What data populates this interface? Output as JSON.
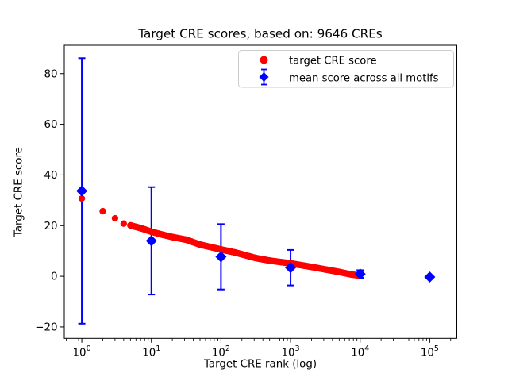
{
  "chart_data": {
    "type": "scatter",
    "title": "Target CRE scores, based on: 9646 CREs",
    "xlabel": "Target CRE rank (log)",
    "ylabel": "Target CRE score",
    "x_scale": "log",
    "grid": false,
    "legend_position": "upper right",
    "n_cres": 9646,
    "xlim": [
      0.56,
      245000
    ],
    "ylim": [
      -24.5,
      91.2
    ],
    "xticks": [
      {
        "value": 1,
        "mantissa": "10",
        "exponent": "0"
      },
      {
        "value": 10,
        "mantissa": "10",
        "exponent": "1"
      },
      {
        "value": 100,
        "mantissa": "10",
        "exponent": "2"
      },
      {
        "value": 1000,
        "mantissa": "10",
        "exponent": "3"
      },
      {
        "value": 10000,
        "mantissa": "10",
        "exponent": "4"
      },
      {
        "value": 100000,
        "mantissa": "10",
        "exponent": "5"
      }
    ],
    "yticks": [
      {
        "value": -20,
        "label": "−20"
      },
      {
        "value": 0,
        "label": "0"
      },
      {
        "value": 20,
        "label": "20"
      },
      {
        "value": 40,
        "label": "40"
      },
      {
        "value": 60,
        "label": "60"
      },
      {
        "value": 80,
        "label": "80"
      }
    ],
    "series": [
      {
        "name": "target CRE score",
        "color": "#ff0000",
        "marker": "circle",
        "marker_diameter_px": 8.3,
        "n_points_full_series": 9646,
        "sampling_note": "anchor points read from plot; full series is a dense monotonically decreasing band of 9646 ranked scores",
        "points": [
          [
            1,
            30.7
          ],
          [
            2,
            25.7
          ],
          [
            3,
            22.9
          ],
          [
            4,
            20.8
          ],
          [
            5,
            20.1
          ],
          [
            6,
            19.5
          ],
          [
            7,
            19.0
          ],
          [
            8,
            18.5
          ],
          [
            9,
            18.0
          ],
          [
            10,
            17.6
          ],
          [
            15,
            16.3
          ],
          [
            20,
            15.5
          ],
          [
            32,
            14.4
          ],
          [
            50,
            12.5
          ],
          [
            100,
            10.6
          ],
          [
            160,
            9.4
          ],
          [
            316,
            7.2
          ],
          [
            500,
            6.2
          ],
          [
            1000,
            5.1
          ],
          [
            2000,
            3.7
          ],
          [
            3162,
            2.7
          ],
          [
            5000,
            1.7
          ],
          [
            7500,
            0.7
          ],
          [
            9646,
            0.3
          ]
        ]
      },
      {
        "name": "mean score across all motifs",
        "color": "#0000ff",
        "marker": "diamond",
        "points": [
          [
            1,
            33.7
          ],
          [
            10,
            14.0
          ],
          [
            100,
            7.7
          ],
          [
            1000,
            3.4
          ],
          [
            10000,
            0.9
          ],
          [
            100000,
            -0.3
          ]
        ],
        "yerr": [
          52.4,
          21.2,
          12.9,
          7.0,
          1.5,
          0.3
        ]
      }
    ]
  }
}
